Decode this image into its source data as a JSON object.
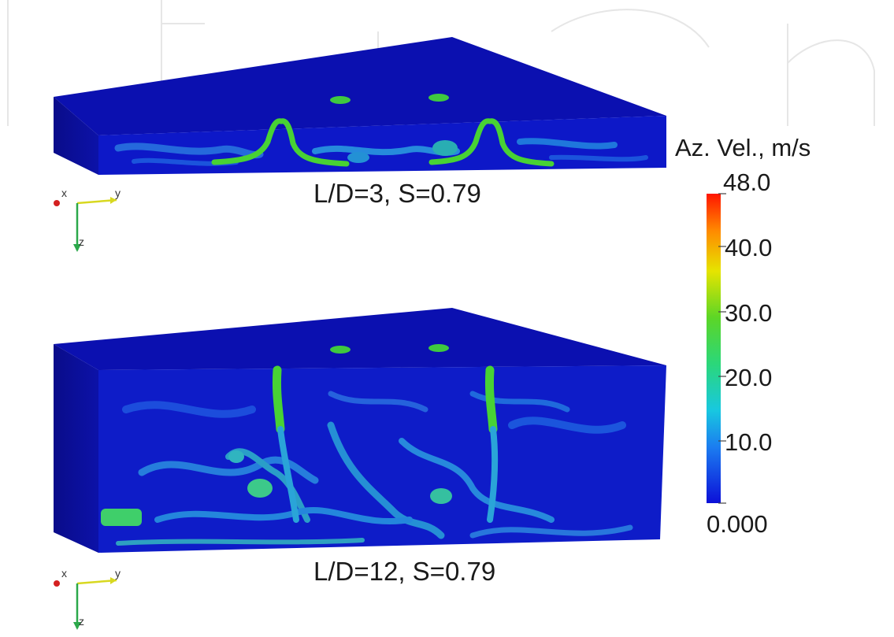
{
  "panels": [
    {
      "caption": "L/D=3, S=0.79",
      "axes": {
        "x": "x",
        "y": "y",
        "z": "z"
      }
    },
    {
      "caption": "L/D=12, S=0.79",
      "axes": {
        "x": "x",
        "y": "y",
        "z": "z"
      }
    }
  ],
  "colorbar": {
    "title": "Az. Vel., m/s",
    "labels": [
      "48.0",
      "40.0",
      "30.0",
      "20.0",
      "10.0",
      "0.000"
    ],
    "colors": [
      "#ff1a00",
      "#ff8a00",
      "#f2e600",
      "#4cd622",
      "#16d8a8",
      "#1b8cf0",
      "#1010d8"
    ]
  },
  "colors": {
    "fluid_dark": "#0a10a8",
    "fluid_mid": "#1432d8",
    "jet": "#3fd23a",
    "eddy": "#27b4d8"
  }
}
